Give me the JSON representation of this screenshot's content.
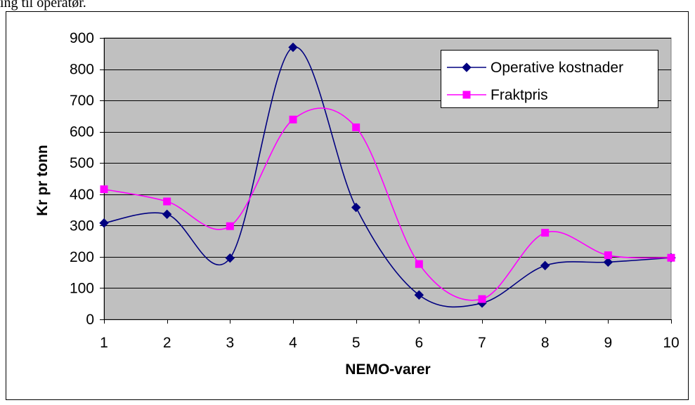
{
  "caption": "ing til operatør.",
  "chart_data": {
    "type": "line",
    "x": [
      1,
      2,
      3,
      4,
      5,
      6,
      7,
      8,
      9,
      10
    ],
    "xlabel": "NEMO-varer",
    "ylabel": "Kr pr tonn",
    "ylim": [
      0,
      900
    ],
    "yticks": [
      0,
      100,
      200,
      300,
      400,
      500,
      600,
      700,
      800,
      900
    ],
    "grid": true,
    "smoothed": true,
    "legend_position": "top-right",
    "series": [
      {
        "name": "Operative kostnader",
        "marker": "diamond",
        "color": "#000080",
        "values": [
          308,
          336,
          196,
          870,
          358,
          78,
          52,
          172,
          183,
          197
        ]
      },
      {
        "name": "Fraktpris",
        "marker": "square",
        "color": "#FF00FF",
        "values": [
          416,
          377,
          298,
          639,
          614,
          177,
          65,
          277,
          205,
          197
        ]
      }
    ]
  },
  "colors": {
    "plot_area": "#C0C0C0",
    "grid": "#000000"
  }
}
